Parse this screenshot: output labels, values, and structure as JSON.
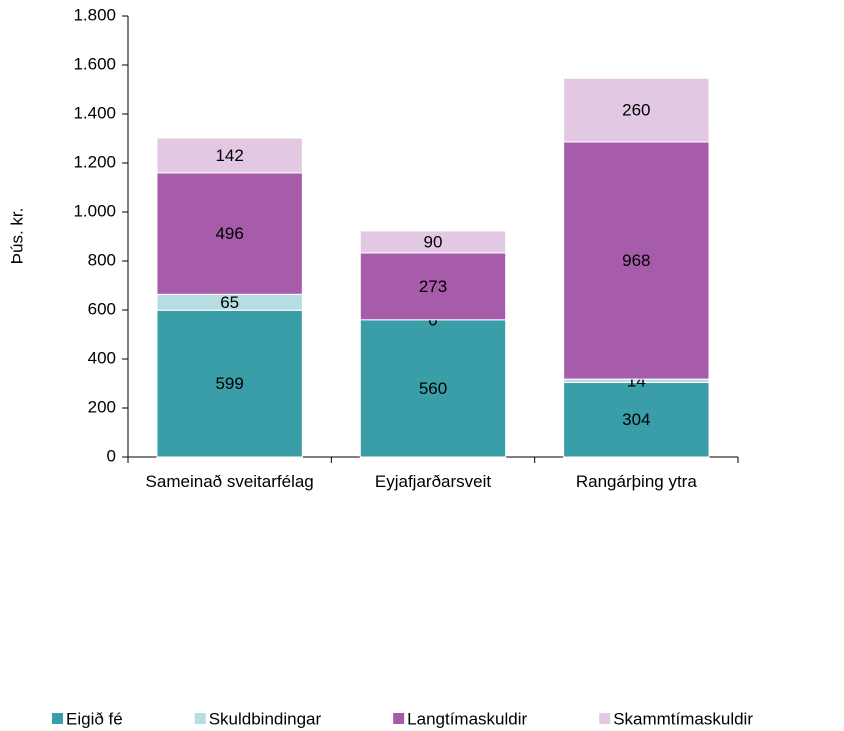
{
  "chart_data": {
    "type": "stacked_bar",
    "y_label": "Þús. kr.",
    "categories": [
      "Sameinað sveitarfélag",
      "Eyjafjarðarsveit",
      "Rangárþing ytra"
    ],
    "series": [
      {
        "name": "Eigið fé",
        "color": "#3a9ea8",
        "values": [
          599,
          560,
          304
        ]
      },
      {
        "name": "Skuldbindingar",
        "color": "#b7dde3",
        "values": [
          65,
          0,
          14
        ]
      },
      {
        "name": "Langtímaskuldir",
        "color": "#a65bab",
        "values": [
          496,
          273,
          968
        ]
      },
      {
        "name": "Skammtímaskuldir",
        "color": "#e3c8e3",
        "values": [
          142,
          90,
          260
        ]
      }
    ],
    "ylim": [
      0,
      1800
    ],
    "yticks": [
      0,
      200,
      400,
      600,
      800,
      {
        "value": 1000,
        "label": "1.000"
      },
      {
        "value": 1200,
        "label": "1.200"
      },
      {
        "value": 1400,
        "label": "1.400"
      },
      {
        "value": 1600,
        "label": "1.600"
      },
      {
        "value": 1800,
        "label": "1.800"
      }
    ],
    "legend": "bottom"
  }
}
